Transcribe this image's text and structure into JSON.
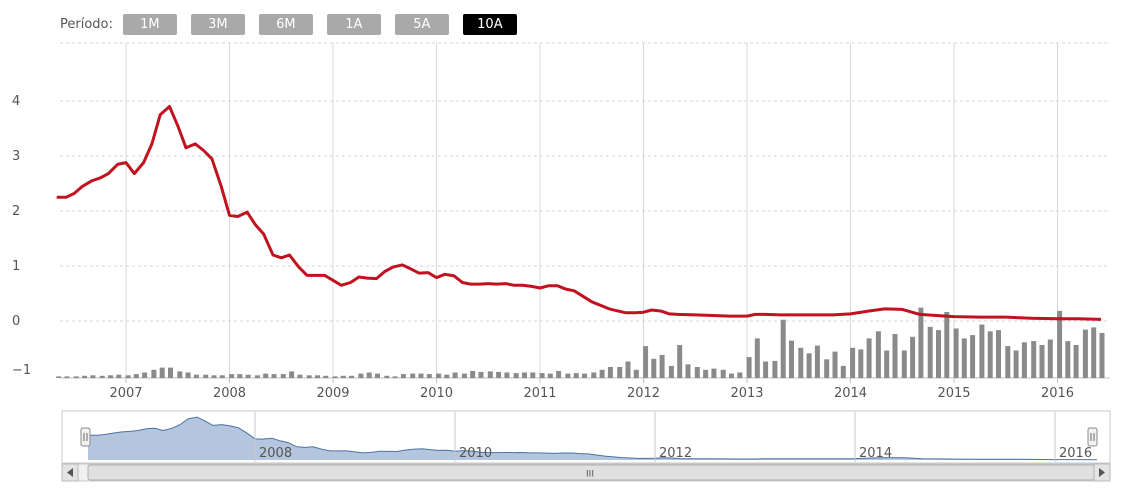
{
  "toolbar": {
    "period_label": "Período:",
    "buttons": [
      "1M",
      "3M",
      "6M",
      "1A",
      "5A",
      "10A"
    ],
    "active": "10A"
  },
  "colors": {
    "line": "#c0121f",
    "volume": "#8a8a8a",
    "navigator_fill": "#b3c6dd",
    "navigator_line": "#4a72a5",
    "active_button": "#000000",
    "button": "#a9a9a9"
  },
  "scrollbar": {
    "grip_label": "III"
  },
  "chart_data": {
    "type": "line",
    "ylim": [
      -1,
      5
    ],
    "yticks": [
      "−1",
      "0",
      "1",
      "2",
      "3",
      "4"
    ],
    "xlabels": [
      "2007",
      "2008",
      "2009",
      "2010",
      "2011",
      "2012",
      "2013",
      "2014",
      "2015",
      "2016"
    ],
    "navigator_labels": [
      "2008",
      "2010",
      "2012",
      "2014",
      "2016"
    ],
    "grid": true,
    "series": [
      {
        "type": "line",
        "x": [
          2006.33,
          2006.42,
          2006.5,
          2006.58,
          2006.67,
          2006.75,
          2006.83,
          2006.92,
          2007.0,
          2007.08,
          2007.17,
          2007.25,
          2007.33,
          2007.42,
          2007.5,
          2007.58,
          2007.67,
          2007.75,
          2007.83,
          2007.92,
          2008.0,
          2008.08,
          2008.17,
          2008.25,
          2008.33,
          2008.42,
          2008.5,
          2008.58,
          2008.67,
          2008.75,
          2008.83,
          2008.92,
          2009.0,
          2009.08,
          2009.17,
          2009.25,
          2009.33,
          2009.42,
          2009.5,
          2009.58,
          2009.67,
          2009.75,
          2009.83,
          2009.92,
          2010.0,
          2010.08,
          2010.17,
          2010.25,
          2010.33,
          2010.42,
          2010.5,
          2010.58,
          2010.67,
          2010.75,
          2010.83,
          2010.92,
          2011.0,
          2011.08,
          2011.17,
          2011.25,
          2011.33,
          2011.5,
          2011.67,
          2011.83,
          2011.92,
          2012.0,
          2012.08,
          2012.17,
          2012.25,
          2012.33,
          2012.5,
          2012.67,
          2012.83,
          2013.0,
          2013.08,
          2013.17,
          2013.33,
          2013.5,
          2013.67,
          2013.83,
          2014.0,
          2014.17,
          2014.33,
          2014.5,
          2014.67,
          2014.83,
          2015.0,
          2015.25,
          2015.5,
          2015.75,
          2016.0,
          2016.2,
          2016.42
        ],
        "values": [
          2.25,
          2.25,
          2.32,
          2.45,
          2.55,
          2.6,
          2.68,
          2.85,
          2.88,
          2.68,
          2.88,
          3.22,
          3.75,
          3.9,
          3.55,
          3.15,
          3.22,
          3.1,
          2.95,
          2.45,
          1.92,
          1.9,
          1.98,
          1.75,
          1.58,
          1.2,
          1.15,
          1.2,
          0.98,
          0.83,
          0.83,
          0.83,
          0.74,
          0.65,
          0.7,
          0.8,
          0.78,
          0.77,
          0.9,
          0.98,
          1.02,
          0.95,
          0.87,
          0.88,
          0.79,
          0.85,
          0.82,
          0.7,
          0.67,
          0.67,
          0.68,
          0.67,
          0.68,
          0.65,
          0.65,
          0.63,
          0.6,
          0.64,
          0.64,
          0.58,
          0.55,
          0.35,
          0.22,
          0.15,
          0.15,
          0.16,
          0.2,
          0.18,
          0.13,
          0.12,
          0.11,
          0.1,
          0.09,
          0.09,
          0.12,
          0.12,
          0.11,
          0.11,
          0.11,
          0.11,
          0.13,
          0.18,
          0.22,
          0.21,
          0.12,
          0.1,
          0.08,
          0.07,
          0.07,
          0.05,
          0.04,
          0.04,
          0.03
        ]
      },
      {
        "type": "bar",
        "x": [
          2006.35,
          2006.43,
          2006.52,
          2006.6,
          2006.68,
          2006.77,
          2006.85,
          2006.93,
          2007.02,
          2007.1,
          2007.18,
          2007.27,
          2007.35,
          2007.43,
          2007.52,
          2007.6,
          2007.68,
          2007.77,
          2007.85,
          2007.93,
          2008.02,
          2008.1,
          2008.18,
          2008.27,
          2008.35,
          2008.43,
          2008.52,
          2008.6,
          2008.68,
          2008.77,
          2008.85,
          2008.93,
          2009.02,
          2009.1,
          2009.18,
          2009.27,
          2009.35,
          2009.43,
          2009.52,
          2009.6,
          2009.68,
          2009.77,
          2009.85,
          2009.93,
          2010.02,
          2010.1,
          2010.18,
          2010.27,
          2010.35,
          2010.43,
          2010.52,
          2010.6,
          2010.68,
          2010.77,
          2010.85,
          2010.93,
          2011.02,
          2011.1,
          2011.18,
          2011.27,
          2011.35,
          2011.43,
          2011.52,
          2011.6,
          2011.68,
          2011.77,
          2011.85,
          2011.93,
          2012.02,
          2012.1,
          2012.18,
          2012.27,
          2012.35,
          2012.43,
          2012.52,
          2012.6,
          2012.68,
          2012.77,
          2012.85,
          2012.93,
          2013.02,
          2013.1,
          2013.18,
          2013.27,
          2013.35,
          2013.43,
          2013.52,
          2013.6,
          2013.68,
          2013.77,
          2013.85,
          2013.93,
          2014.02,
          2014.1,
          2014.18,
          2014.27,
          2014.35,
          2014.43,
          2014.52,
          2014.6,
          2014.68,
          2014.77,
          2014.85,
          2014.93,
          2015.02,
          2015.1,
          2015.18,
          2015.27,
          2015.35,
          2015.43,
          2015.52,
          2015.6,
          2015.68,
          2015.77,
          2015.85,
          2015.93,
          2016.02,
          2016.1,
          2016.18,
          2016.27,
          2016.35,
          2016.43
        ],
        "values": [
          0.03,
          0.03,
          0.03,
          0.04,
          0.05,
          0.04,
          0.05,
          0.06,
          0.05,
          0.07,
          0.1,
          0.15,
          0.19,
          0.19,
          0.12,
          0.1,
          0.06,
          0.06,
          0.05,
          0.05,
          0.07,
          0.07,
          0.06,
          0.05,
          0.08,
          0.07,
          0.07,
          0.12,
          0.06,
          0.05,
          0.05,
          0.04,
          0.03,
          0.04,
          0.04,
          0.08,
          0.1,
          0.08,
          0.04,
          0.03,
          0.07,
          0.08,
          0.08,
          0.07,
          0.08,
          0.06,
          0.1,
          0.08,
          0.13,
          0.11,
          0.12,
          0.11,
          0.1,
          0.09,
          0.1,
          0.1,
          0.09,
          0.08,
          0.13,
          0.08,
          0.09,
          0.08,
          0.1,
          0.15,
          0.2,
          0.2,
          0.3,
          0.15,
          0.58,
          0.35,
          0.42,
          0.22,
          0.6,
          0.25,
          0.2,
          0.15,
          0.17,
          0.15,
          0.08,
          0.1,
          0.38,
          0.72,
          0.3,
          0.31,
          1.06,
          0.68,
          0.55,
          0.45,
          0.59,
          0.34,
          0.48,
          0.22,
          0.55,
          0.52,
          0.72,
          0.85,
          0.5,
          0.8,
          0.5,
          0.75,
          1.28,
          0.93,
          0.87,
          1.2,
          0.9,
          0.72,
          0.78,
          0.97,
          0.85,
          0.87,
          0.58,
          0.5,
          0.65,
          0.67,
          0.6,
          0.7,
          1.22,
          0.67,
          0.6,
          0.88,
          0.92,
          0.82
        ]
      }
    ]
  }
}
